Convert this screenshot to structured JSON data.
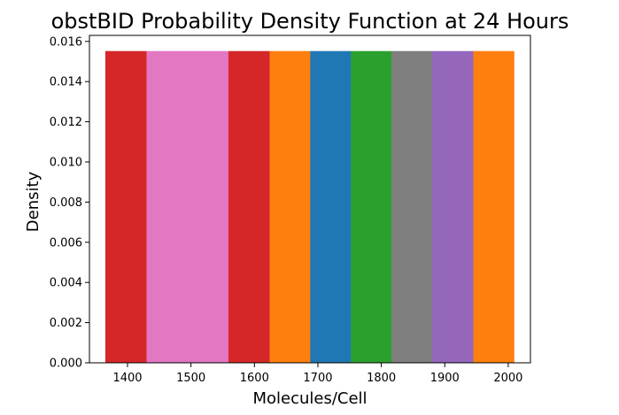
{
  "chart_data": {
    "type": "bar",
    "title": "obstBID Probability Density Function at 24 Hours",
    "xlabel": "Molecules/Cell",
    "ylabel": "Density",
    "xlim": [
      1340,
      2035
    ],
    "ylim": [
      0,
      0.0163
    ],
    "xticks": [
      1400,
      1500,
      1600,
      1700,
      1800,
      1900,
      2000
    ],
    "yticks": [
      0.0,
      0.002,
      0.004,
      0.006,
      0.008,
      0.01,
      0.012,
      0.014,
      0.016
    ],
    "ytick_labels": [
      "0.000",
      "0.002",
      "0.004",
      "0.006",
      "0.008",
      "0.010",
      "0.012",
      "0.014",
      "0.016"
    ],
    "bars": [
      {
        "x0": 1365,
        "x1": 1430,
        "value": 0.01552,
        "color": "#d62728"
      },
      {
        "x0": 1430,
        "x1": 1559,
        "value": 0.01552,
        "color": "#e377c2"
      },
      {
        "x0": 1559,
        "x1": 1624,
        "value": 0.01552,
        "color": "#d62728"
      },
      {
        "x0": 1624,
        "x1": 1688,
        "value": 0.01552,
        "color": "#ff7f0e"
      },
      {
        "x0": 1688,
        "x1": 1752,
        "value": 0.01552,
        "color": "#1f77b4"
      },
      {
        "x0": 1752,
        "x1": 1816,
        "value": 0.01552,
        "color": "#2ca02c"
      },
      {
        "x0": 1816,
        "x1": 1880,
        "value": 0.01552,
        "color": "#7f7f7f"
      },
      {
        "x0": 1880,
        "x1": 1945,
        "value": 0.01552,
        "color": "#9467bd"
      },
      {
        "x0": 1945,
        "x1": 2009,
        "value": 0.01552,
        "color": "#ff7f0e"
      }
    ],
    "grid": false
  }
}
